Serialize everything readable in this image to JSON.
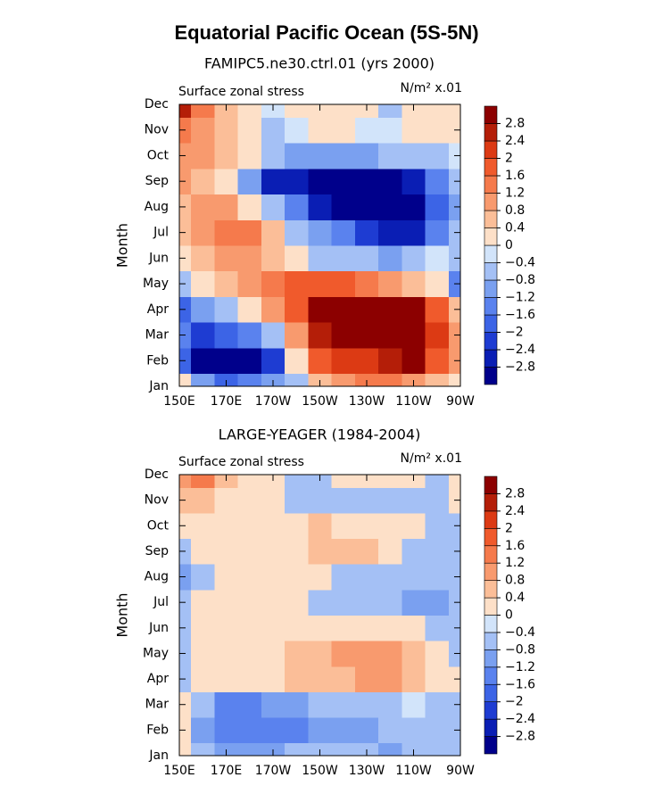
{
  "title": "Equatorial Pacific Ocean (5S-5N)",
  "chart_data": [
    {
      "type": "heatmap",
      "title": "FAMIPC5.ne30.ctrl.01 (yrs 2000)",
      "left_label": "Surface zonal stress",
      "right_label": "N/m² x.01",
      "ylabel": "Month",
      "x": [
        150,
        160,
        170,
        180,
        190,
        200,
        210,
        220,
        230,
        240,
        250,
        260,
        270
      ],
      "xlim": [
        150,
        270
      ],
      "xticks": [
        {
          "value": 150,
          "label": "150E"
        },
        {
          "value": 170,
          "label": "170E"
        },
        {
          "value": 190,
          "label": "170W"
        },
        {
          "value": 210,
          "label": "150W"
        },
        {
          "value": 230,
          "label": "130W"
        },
        {
          "value": 250,
          "label": "110W"
        },
        {
          "value": 270,
          "label": "90W"
        }
      ],
      "y": [
        "Jan",
        "Feb",
        "Mar",
        "Apr",
        "May",
        "Jun",
        "Jul",
        "Aug",
        "Sep",
        "Oct",
        "Nov",
        "Dec"
      ],
      "z": [
        [
          0.4,
          -0.8,
          -1.6,
          -1.2,
          -0.8,
          -0.4,
          0.8,
          1.2,
          1.6,
          1.6,
          1.2,
          0.8,
          0.4
        ],
        [
          -1.6,
          -3.2,
          -3.2,
          -3.0,
          -2.0,
          0.4,
          2.0,
          2.4,
          2.4,
          2.8,
          3.0,
          2.0,
          1.2
        ],
        [
          -1.2,
          -2.0,
          -1.6,
          -1.2,
          -0.4,
          1.2,
          2.8,
          3.2,
          3.2,
          3.2,
          3.2,
          2.4,
          1.2
        ],
        [
          -1.6,
          -0.8,
          -0.4,
          0.4,
          1.2,
          2.0,
          3.2,
          3.2,
          3.2,
          3.2,
          3.0,
          2.0,
          0.8
        ],
        [
          -0.4,
          0.4,
          0.8,
          1.2,
          1.6,
          2.0,
          2.0,
          2.0,
          1.6,
          1.2,
          0.8,
          0.4,
          -1.2
        ],
        [
          0.4,
          0.8,
          1.2,
          1.2,
          0.8,
          0.4,
          -0.4,
          -0.4,
          -0.4,
          -0.8,
          -0.4,
          0,
          -0.4
        ],
        [
          0.8,
          1.2,
          1.6,
          1.6,
          0.8,
          -0.4,
          -0.8,
          -1.2,
          -2.0,
          -2.4,
          -2.4,
          -1.2,
          -0.4
        ],
        [
          0.8,
          1.2,
          1.2,
          0.4,
          -0.4,
          -1.2,
          -2.4,
          -3.2,
          -3.2,
          -3.2,
          -3.2,
          -1.6,
          -0.8
        ],
        [
          1.2,
          0.8,
          0.4,
          -0.8,
          -2.4,
          -2.4,
          -3.2,
          -3.2,
          -3.2,
          -3.2,
          -2.4,
          -1.2,
          -0.4
        ],
        [
          1.2,
          1.2,
          0.8,
          0.4,
          -0.4,
          -0.8,
          -0.8,
          -0.8,
          -0.8,
          -0.4,
          -0.4,
          -0.4,
          0
        ],
        [
          1.6,
          1.2,
          0.8,
          0.4,
          -0.4,
          0,
          0.4,
          0.4,
          0,
          0,
          0.4,
          0.4,
          0.4
        ],
        [
          2.8,
          1.6,
          0.8,
          0.4,
          0,
          0.4,
          0.4,
          0.4,
          0.4,
          -0.4,
          0.4,
          0.4,
          0.4
        ]
      ],
      "levels": [
        {
          "value": -2.8,
          "label": "−2.8"
        },
        {
          "value": -2.4,
          "label": "−2.4"
        },
        {
          "value": -2,
          "label": "−2"
        },
        {
          "value": -1.6,
          "label": "−1.6"
        },
        {
          "value": -1.2,
          "label": "−1.2"
        },
        {
          "value": -0.8,
          "label": "−0.8"
        },
        {
          "value": -0.4,
          "label": "−0.4"
        },
        0,
        0.4,
        0.8,
        1.2,
        1.6,
        2,
        2.4,
        2.8
      ],
      "colors": [
        "#00008b",
        "#0a1eb4",
        "#1e3cd2",
        "#3c64e6",
        "#5a82ee",
        "#7aa0f0",
        "#a4c0f5",
        "#d2e4fa",
        "#fde0c8",
        "#fbbe98",
        "#f89a6e",
        "#f57a4c",
        "#f05a2c",
        "#dc3a14",
        "#b41e08",
        "#8c0000"
      ]
    },
    {
      "type": "heatmap",
      "title": "LARGE-YEAGER (1984-2004)",
      "left_label": "Surface zonal stress",
      "right_label": "N/m² x.01",
      "ylabel": "Month",
      "x": [
        150,
        160,
        170,
        180,
        190,
        200,
        210,
        220,
        230,
        240,
        250,
        260,
        270
      ],
      "xlim": [
        150,
        270
      ],
      "xticks": [
        {
          "value": 150,
          "label": "150E"
        },
        {
          "value": 170,
          "label": "170E"
        },
        {
          "value": 190,
          "label": "170W"
        },
        {
          "value": 210,
          "label": "150W"
        },
        {
          "value": 230,
          "label": "130W"
        },
        {
          "value": 250,
          "label": "110W"
        },
        {
          "value": 270,
          "label": "90W"
        }
      ],
      "y": [
        "Jan",
        "Feb",
        "Mar",
        "Apr",
        "May",
        "Jun",
        "Jul",
        "Aug",
        "Sep",
        "Oct",
        "Nov",
        "Dec"
      ],
      "z": [
        [
          0.4,
          -0.4,
          -0.8,
          -0.8,
          -0.8,
          -0.4,
          -0.4,
          -0.4,
          -0.4,
          -0.8,
          -0.4,
          -0.4,
          -0.4
        ],
        [
          0.4,
          -0.8,
          -1.2,
          -1.2,
          -1.2,
          -1.2,
          -0.8,
          -0.8,
          -0.8,
          -0.4,
          -0.4,
          -0.4,
          -0.4
        ],
        [
          0.4,
          -0.4,
          -1.2,
          -1.2,
          -0.8,
          -0.8,
          -0.4,
          -0.4,
          -0.4,
          -0.4,
          0,
          -0.4,
          -0.4
        ],
        [
          -0.4,
          0.2,
          0.2,
          0.2,
          0.4,
          0.8,
          0.8,
          0.8,
          1.2,
          1.2,
          0.8,
          0.4,
          0.2
        ],
        [
          -0.4,
          0.2,
          0.2,
          0.4,
          0.4,
          0.8,
          0.8,
          1.2,
          1.2,
          1.2,
          0.8,
          0.2,
          -0.4
        ],
        [
          -0.4,
          0.2,
          0.2,
          0.2,
          0.4,
          0.4,
          0.4,
          0.4,
          0.4,
          0.4,
          0.2,
          -0.4,
          -0.4
        ],
        [
          -0.4,
          0.2,
          0.2,
          0.2,
          0.2,
          0.2,
          -0.4,
          -0.4,
          -0.4,
          -0.4,
          -0.8,
          -0.8,
          -0.4
        ],
        [
          -0.8,
          -0.4,
          0.2,
          0.2,
          0.2,
          0.2,
          0.2,
          -0.4,
          -0.4,
          -0.4,
          -0.4,
          -0.4,
          -0.4
        ],
        [
          -0.4,
          0.2,
          0.2,
          0.2,
          0.2,
          0.4,
          0.8,
          0.8,
          0.8,
          0.4,
          -0.4,
          -0.4,
          -0.4
        ],
        [
          0.2,
          0.2,
          0.2,
          0.2,
          0.2,
          0.4,
          0.8,
          0.4,
          0.4,
          0.4,
          0.2,
          -0.4,
          -0.4
        ],
        [
          0.8,
          0.8,
          0.4,
          0.4,
          0.2,
          -0.4,
          -0.4,
          -0.4,
          -0.4,
          -0.4,
          -0.4,
          -0.4,
          0.4
        ],
        [
          1.2,
          1.6,
          0.8,
          0.4,
          0.4,
          -0.4,
          -0.4,
          0.2,
          0.2,
          0.2,
          0.2,
          -0.4,
          0.4
        ]
      ],
      "levels": [
        {
          "value": -2.8,
          "label": "−2.8"
        },
        {
          "value": -2.4,
          "label": "−2.4"
        },
        {
          "value": -2,
          "label": "−2"
        },
        {
          "value": -1.6,
          "label": "−1.6"
        },
        {
          "value": -1.2,
          "label": "−1.2"
        },
        {
          "value": -0.8,
          "label": "−0.8"
        },
        {
          "value": -0.4,
          "label": "−0.4"
        },
        0,
        0.4,
        0.8,
        1.2,
        1.6,
        2,
        2.4,
        2.8
      ],
      "colors": [
        "#00008b",
        "#0a1eb4",
        "#1e3cd2",
        "#3c64e6",
        "#5a82ee",
        "#7aa0f0",
        "#a4c0f5",
        "#d2e4fa",
        "#fde0c8",
        "#fbbe98",
        "#f89a6e",
        "#f57a4c",
        "#f05a2c",
        "#dc3a14",
        "#b41e08",
        "#8c0000"
      ]
    }
  ]
}
